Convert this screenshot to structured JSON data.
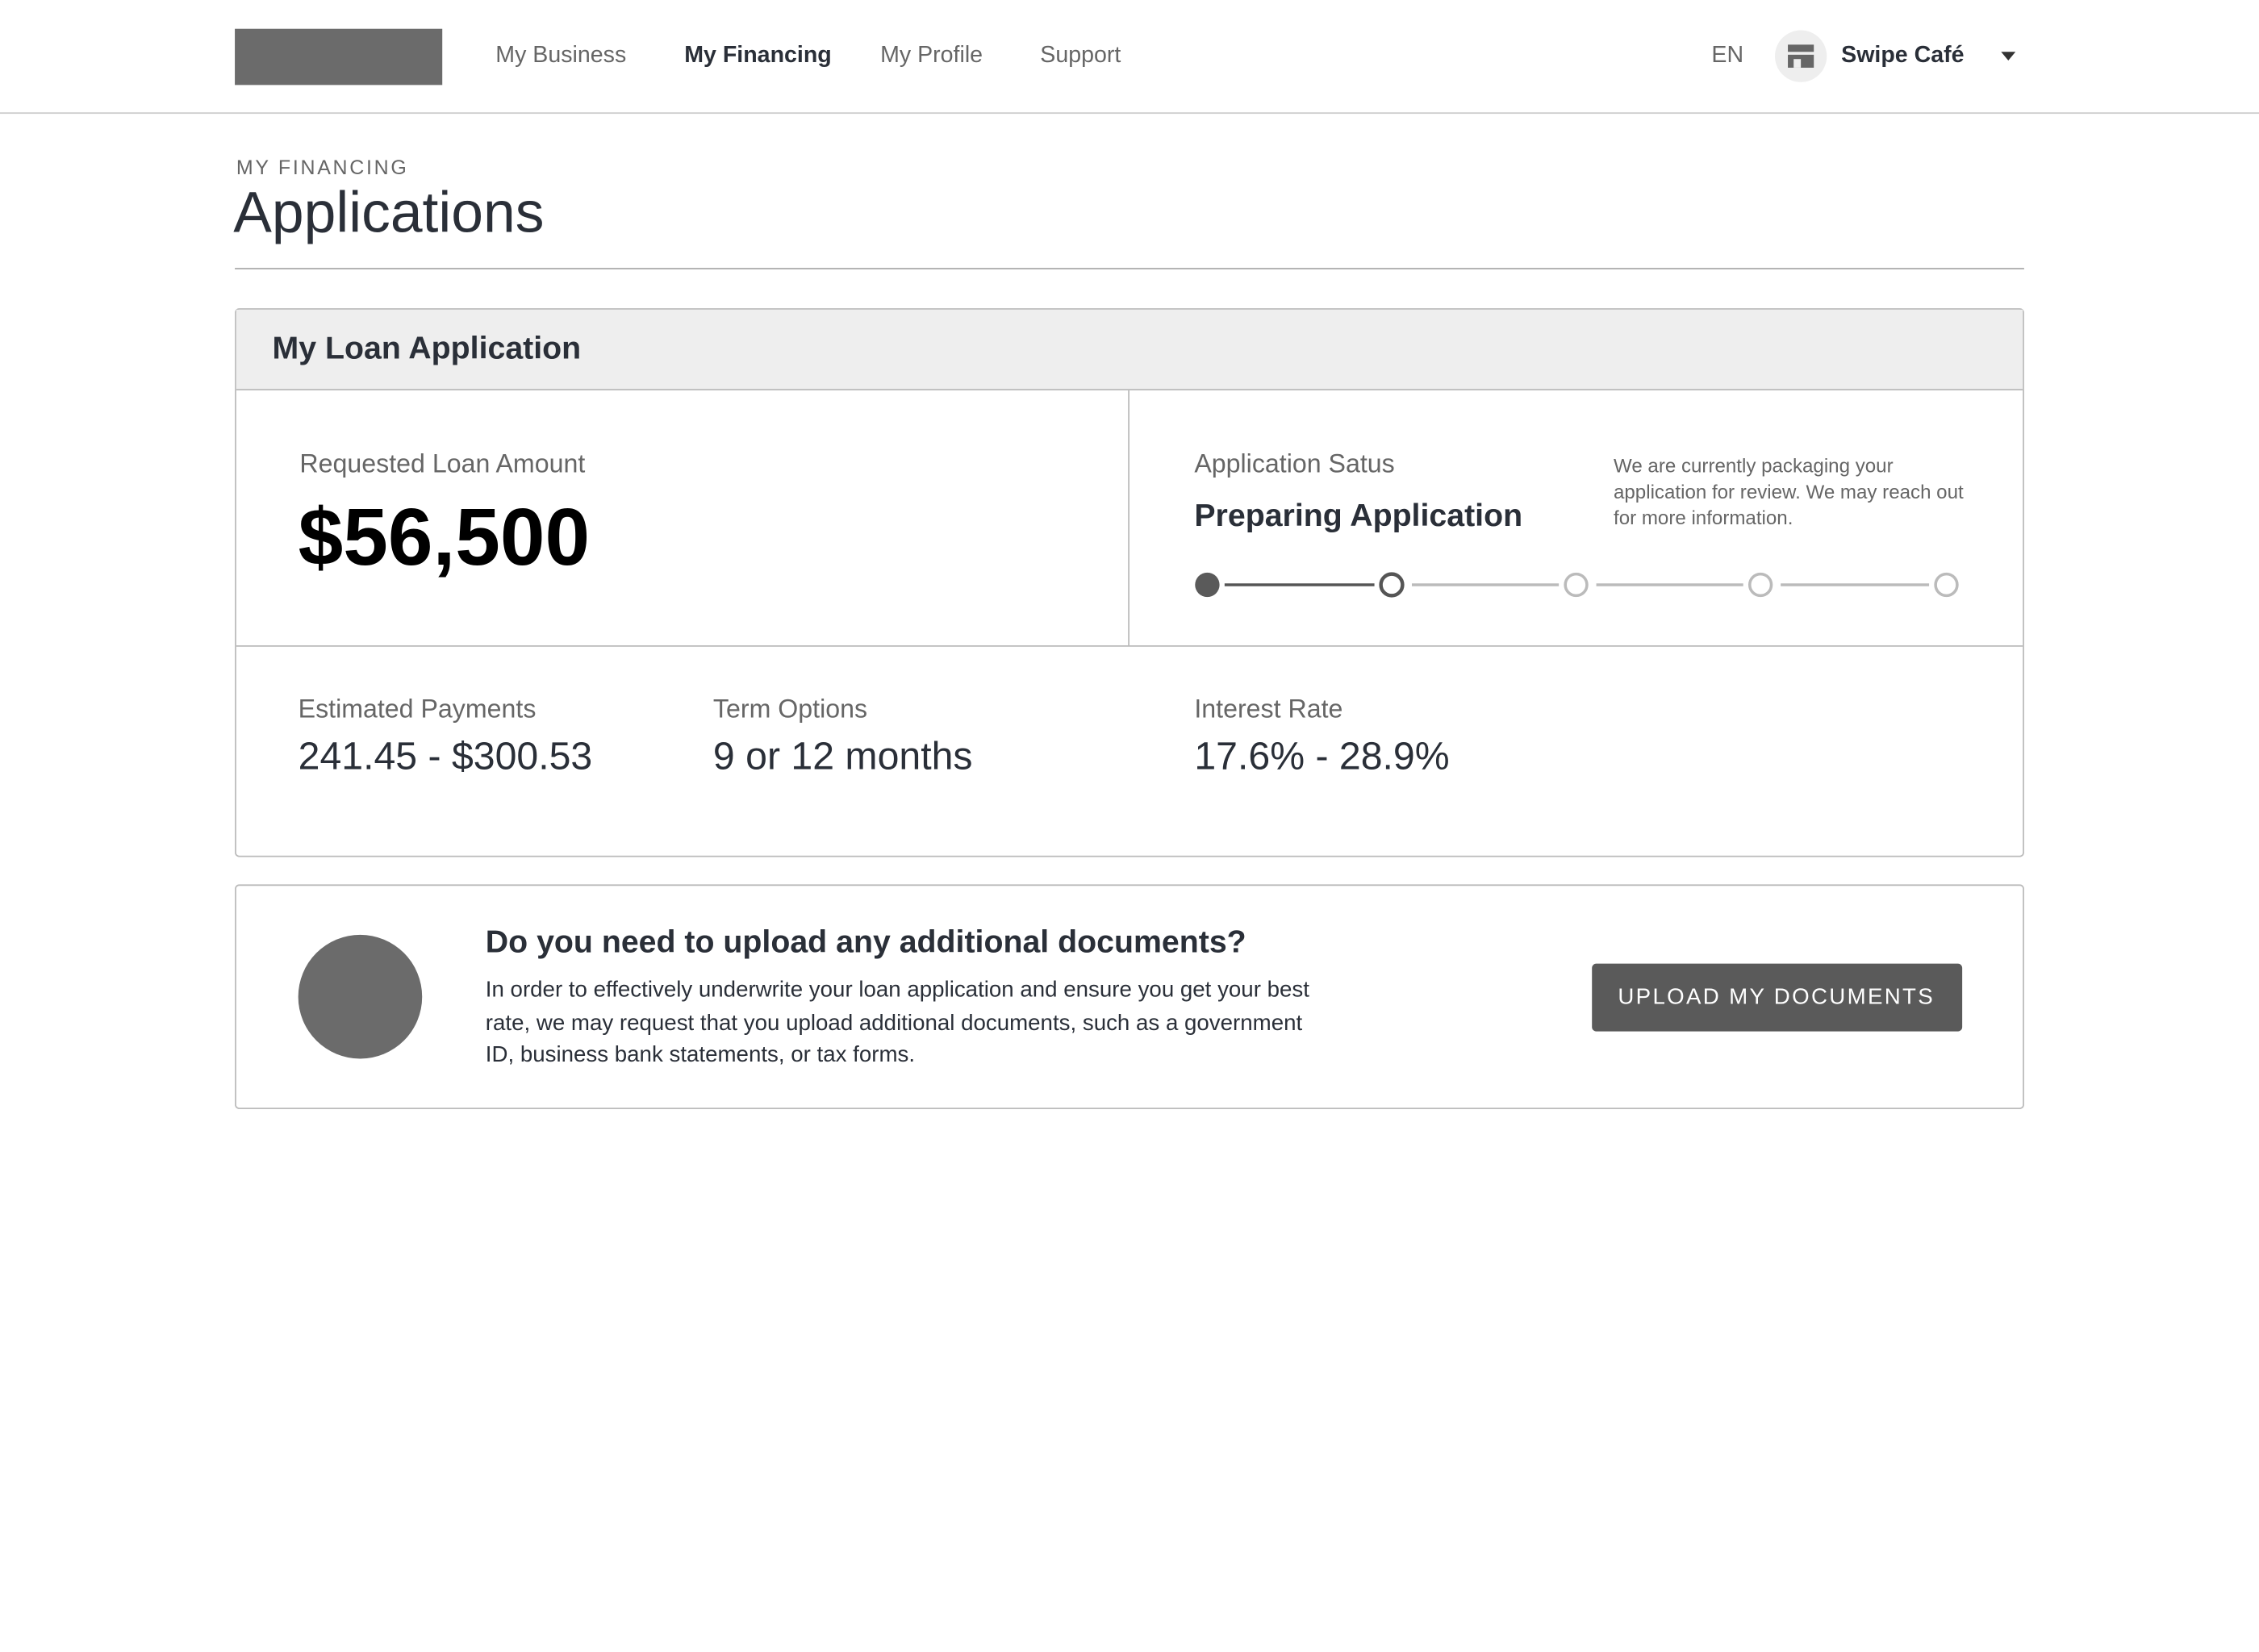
{
  "header": {
    "nav": [
      "My Business",
      "My Financing",
      "My Profile",
      "Support"
    ],
    "language": "EN",
    "account": "Swipe Café"
  },
  "page": {
    "eyebrow": "MY FINANCING",
    "title": "Applications"
  },
  "loan_card": {
    "title": "My Loan Application",
    "requested_label": "Requested Loan Amount",
    "requested_amount": "$56,500",
    "status_label": "Application Satus",
    "status": "Preparing Application",
    "status_description": "We are currently packaging your application for review. We may reach out for more information.",
    "details": [
      {
        "label": "Estimated Payments",
        "value": "241.45 - $300.53"
      },
      {
        "label": "Term Options",
        "value": "9 or 12 months"
      },
      {
        "label": "Interest Rate",
        "value": "17.6% - 28.9%"
      }
    ]
  },
  "documents_card": {
    "title": "Do you need to upload any additional documents?",
    "body": "In order to effectively underwrite your loan application and ensure you get your best rate, we may request that you upload additional documents, such as a government ID, business bank statements, or tax forms.",
    "button": "UPLOAD MY DOCUMENTS"
  }
}
